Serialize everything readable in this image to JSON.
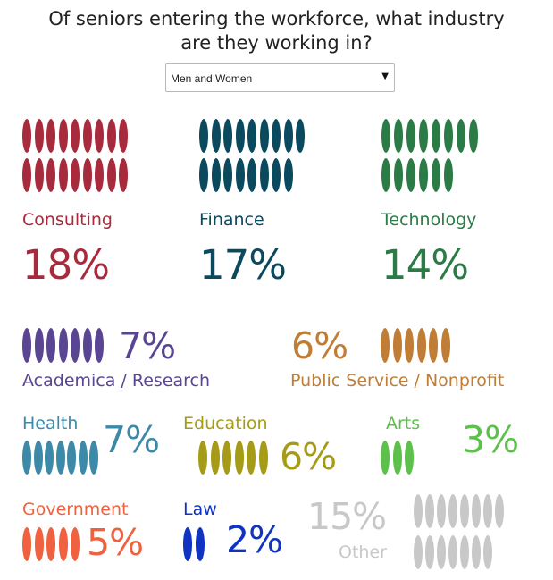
{
  "title_line1": "Of seniors entering the workforce, what industry",
  "title_line2": "are they working in?",
  "filter": {
    "selected": "Men and Women",
    "arrow_icon": "triangle-down-icon"
  },
  "chart_data": {
    "type": "pictograph",
    "title": "Of seniors entering the workforce, what industry are they working in?",
    "unit": "%",
    "categories": [
      {
        "name": "Consulting",
        "value": 18,
        "value_label": "18%",
        "icons": 18,
        "color": "#a82b3d"
      },
      {
        "name": "Finance",
        "value": 17,
        "value_label": "17%",
        "icons": 17,
        "color": "#0b4a5e"
      },
      {
        "name": "Technology",
        "value": 14,
        "value_label": "14%",
        "icons": 14,
        "color": "#2b7b46"
      },
      {
        "name": "Academica / Research",
        "value": 7,
        "value_label": "7%",
        "icons": 7,
        "color": "#5a4593"
      },
      {
        "name": "Public Service / Nonprofit",
        "value": 6,
        "value_label": "6%",
        "icons": 6,
        "color": "#c07d35"
      },
      {
        "name": "Health",
        "value": 7,
        "value_label": "7%",
        "icons": 7,
        "color": "#3d8aa8"
      },
      {
        "name": "Education",
        "value": 6,
        "value_label": "6%",
        "icons": 6,
        "color": "#a69b17"
      },
      {
        "name": "Arts",
        "value": 3,
        "value_label": "3%",
        "icons": 3,
        "color": "#5cc04a"
      },
      {
        "name": "Government",
        "value": 5,
        "value_label": "5%",
        "icons": 5,
        "color": "#f0613f"
      },
      {
        "name": "Law",
        "value": 2,
        "value_label": "2%",
        "icons": 2,
        "color": "#1133c2"
      },
      {
        "name": "Other",
        "value": 15,
        "value_label": "15%",
        "icons": 15,
        "color": "#c8c8c8"
      }
    ]
  }
}
